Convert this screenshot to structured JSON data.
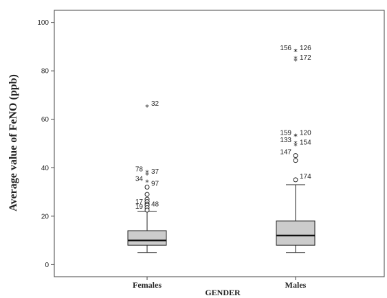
{
  "chart_data": {
    "type": "boxplot",
    "title": "",
    "xlabel": "GENDER",
    "ylabel": "Average value of FeNO (ppb)",
    "ylim": [
      -5,
      105
    ],
    "y_ticks": [
      0,
      20,
      40,
      60,
      80,
      100
    ],
    "y_tick_labels": [
      "0",
      "20",
      "40",
      "60",
      "80",
      "100"
    ],
    "grid": false,
    "box_color": "#cccccc",
    "categories": [
      "Females",
      "Males"
    ],
    "boxes": [
      {
        "category": "Females",
        "whisker_low": 5,
        "q1": 8,
        "median": 10,
        "q3": 14,
        "whisker_high": 22,
        "outliers": [
          {
            "value": 65,
            "marker": "star",
            "label": "32"
          },
          {
            "value": 38,
            "marker": "star",
            "label": "78"
          },
          {
            "value": 37,
            "marker": "star",
            "label": "37"
          },
          {
            "value": 34,
            "marker": "star",
            "label": "34"
          },
          {
            "value": 32,
            "marker": "circle",
            "label": "97"
          },
          {
            "value": 29,
            "marker": "circle",
            "label": ""
          },
          {
            "value": 27,
            "marker": "circle",
            "label": ""
          },
          {
            "value": 26,
            "marker": "circle",
            "label": ""
          },
          {
            "value": 25,
            "marker": "circle",
            "label": ""
          },
          {
            "value": 24.5,
            "marker": "circle",
            "label": "17"
          },
          {
            "value": 23.5,
            "marker": "circle",
            "label": "48"
          },
          {
            "value": 22.5,
            "marker": "circle",
            "label": "19"
          }
        ]
      },
      {
        "category": "Males",
        "whisker_low": 5,
        "q1": 8,
        "median": 12,
        "q3": 18,
        "whisker_high": 33,
        "outliers": [
          {
            "value": 88,
            "marker": "star",
            "label": "126"
          },
          {
            "value": 88,
            "marker": "star",
            "label": "156"
          },
          {
            "value": 85,
            "marker": "star",
            "label": ""
          },
          {
            "value": 84,
            "marker": "star",
            "label": "172"
          },
          {
            "value": 53,
            "marker": "star",
            "label": "159"
          },
          {
            "value": 53,
            "marker": "star",
            "label": "120"
          },
          {
            "value": 50,
            "marker": "star",
            "label": "133"
          },
          {
            "value": 49,
            "marker": "star",
            "label": "154"
          },
          {
            "value": 45,
            "marker": "circle",
            "label": "147"
          },
          {
            "value": 43,
            "marker": "circle",
            "label": ""
          },
          {
            "value": 35,
            "marker": "circle",
            "label": "174"
          }
        ]
      }
    ]
  }
}
